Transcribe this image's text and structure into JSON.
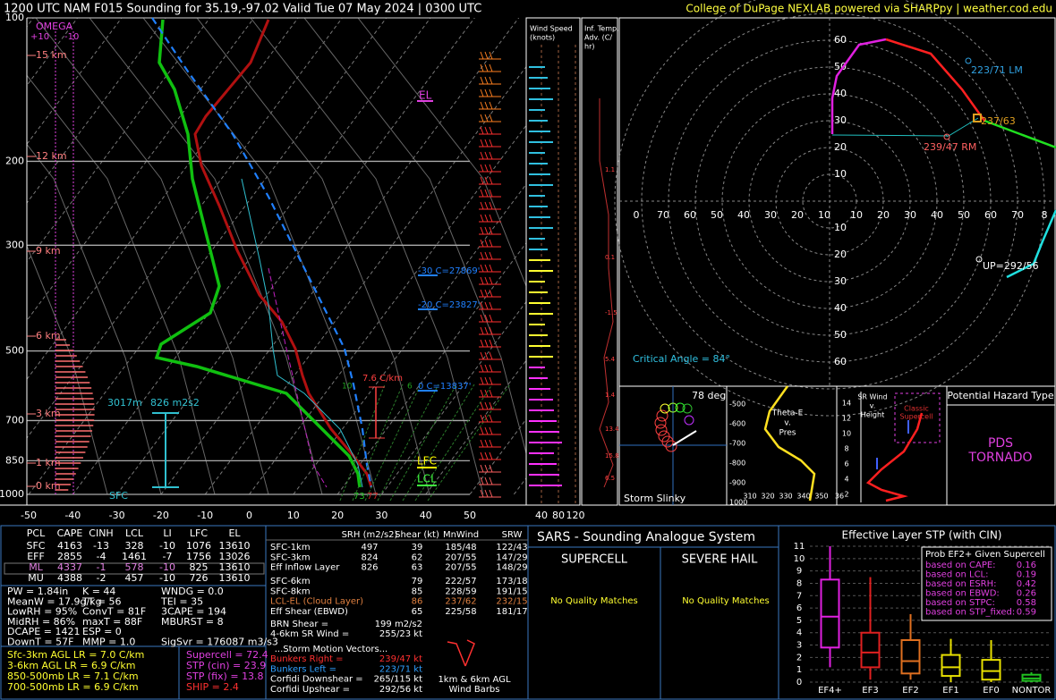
{
  "header": {
    "title": "1200 UTC NAM F015 Sounding for 35.19,-97.02 Valid  Tue 07 May 2024 | 0300 UTC",
    "credit": "College of DuPage NEXLAB powered via SHARPpy | weather.cod.edu"
  },
  "skewt": {
    "pressure_labels": [
      "100",
      "200",
      "300",
      "500",
      "700",
      "850",
      "1000"
    ],
    "temp_labels": [
      "-50",
      "-40",
      "-30",
      "-20",
      "-10",
      "0",
      "10",
      "20",
      "30",
      "40",
      "50"
    ],
    "heights": [
      "15 km",
      "12 km",
      "9 km",
      "6 km",
      "3 km",
      "1 km",
      "0 km"
    ],
    "omega": "OMEGA",
    "omega_scale": [
      "+10",
      "-10"
    ],
    "el": "EL",
    "lfc": "LFC",
    "lcl": "LCL",
    "levels": [
      "-30 C=27869'",
      "-20 C=23827'",
      "0 C=13837'"
    ],
    "lapse": "7.6 C/km",
    "inflow_depth": "3017m",
    "inflow_srh": "826 m2s2",
    "sfc": "SFC",
    "sfc_dew": "73",
    "sfc_temp": "77",
    "mixing_labels": [
      "10",
      "6"
    ]
  },
  "wind_panel": {
    "title": [
      "Wind Speed",
      "(knots)"
    ],
    "ticks": [
      "40",
      "80",
      "120"
    ]
  },
  "temp_adv": {
    "title": [
      "Inf. Temp.",
      "Adv. (C/",
      "hr)"
    ],
    "labels": [
      "1.1",
      "0.1",
      "-1.5",
      "5.4",
      "1.4",
      "13.4",
      "15.8",
      "6.5"
    ]
  },
  "hodograph": {
    "y_up": [
      "60",
      "50",
      "40",
      "30",
      "20",
      "10"
    ],
    "y_down": [
      "10",
      "20",
      "30",
      "40",
      "50",
      "60"
    ],
    "x_left": [
      "0",
      "70",
      "60",
      "50",
      "40",
      "30",
      "20",
      "10"
    ],
    "x_right": [
      "10",
      "20",
      "30",
      "40",
      "50",
      "60",
      "70",
      "8"
    ],
    "lm": "223/71 LM",
    "mean": "237/63",
    "rm": "239/47 RM",
    "up": "UP=292/56",
    "critical": "Critical Angle = 84°"
  },
  "slinky": {
    "angle": "78 deg",
    "title": "Storm Slinky"
  },
  "theta_e": {
    "title": [
      "Theta-E",
      "v.",
      "Pres"
    ],
    "y_labels": [
      "-500",
      "-600",
      "-700",
      "-800",
      "-900",
      "1000"
    ],
    "x_labels": [
      "310",
      "320",
      "330",
      "340",
      "350",
      "36"
    ]
  },
  "sr_wind": {
    "title": [
      "SR Wind",
      "v.",
      "Height"
    ],
    "y_labels": [
      "14",
      "12",
      "10",
      "8",
      "6",
      "4",
      "2"
    ],
    "box": [
      "Classic",
      "Supercell"
    ]
  },
  "hazard": {
    "title": "Potential Hazard Type",
    "type": [
      "PDS",
      "TORNADO"
    ]
  },
  "parcels": {
    "header": [
      "PCL",
      "CAPE",
      "CINH",
      "LCL",
      "LI",
      "LFC",
      "EL"
    ],
    "rows": [
      [
        "SFC",
        "4163",
        "-13",
        "328",
        "-10",
        "1076",
        "13610"
      ],
      [
        "EFF",
        "2855",
        "-4",
        "1461",
        "-7",
        "1756",
        "13026"
      ],
      [
        "ML",
        "4337",
        "-1",
        "578",
        "-10",
        "825",
        "13610"
      ],
      [
        "MU",
        "4388",
        "-2",
        "457",
        "-10",
        "726",
        "13610"
      ]
    ]
  },
  "indices": [
    [
      "PW = 1.84in",
      "K = 44",
      "WNDG = 0.0"
    ],
    [
      "MeanW = 17.9g/kg",
      "TT = 56",
      "TEI = 35"
    ],
    [
      "LowRH = 95%",
      "ConvT = 81F",
      "3CAPE = 194"
    ],
    [
      "MidRH = 86%",
      "maxT = 88F",
      "MBURST = 8"
    ],
    [
      "DCAPE = 1421",
      "ESP = 0"
    ],
    [
      "DownT = 57F",
      "MMP = 1.0",
      "SigSvr = 176087 m3/s3"
    ]
  ],
  "lapse_rates": [
    "Sfc-3km AGL LR = 7.0 C/km",
    "3-6km AGL LR = 6.9 C/km",
    "850-500mb LR = 7.1 C/km",
    "700-500mb LR = 6.9 C/km"
  ],
  "composites": [
    "Supercell = 72.4",
    "STP (cin) = 23.9",
    "STP (fix) = 13.8",
    "SHIP = 2.4"
  ],
  "kinematics": {
    "header": [
      "SRH (m2/s2)",
      "Shear (kt)",
      "MnWind",
      "SRW"
    ],
    "rows": [
      [
        "SFC-1km",
        "497",
        "39",
        "185/48",
        "122/43"
      ],
      [
        "SFC-3km",
        "824",
        "62",
        "207/55",
        "147/29"
      ],
      [
        "Eff Inflow Layer",
        "826",
        "63",
        "207/55",
        "148/29"
      ],
      [
        "SFC-6km",
        "",
        "79",
        "222/57",
        "173/18"
      ],
      [
        "SFC-8km",
        "",
        "85",
        "228/59",
        "191/15"
      ],
      [
        "LCL-EL (Cloud Layer)",
        "",
        "86",
        "237/62",
        "232/15"
      ],
      [
        "Eff Shear (EBWD)",
        "",
        "65",
        "225/58",
        "181/17"
      ]
    ],
    "brn": [
      "BRN Shear =",
      "199 m2/s2"
    ],
    "sr46": [
      "4-6km SR Wind =",
      "255/23 kt"
    ],
    "vectors_title": "...Storm Motion Vectors...",
    "vectors": [
      [
        "Bunkers Right =",
        "239/47 kt"
      ],
      [
        "Bunkers Left =",
        "223/71 kt"
      ],
      [
        "Corfidi Downshear =",
        "265/115 kt"
      ],
      [
        "Corfidi Upshear =",
        "292/56 kt"
      ]
    ],
    "barbs": [
      "1km & 6km AGL",
      "Wind Barbs"
    ]
  },
  "sars": {
    "title": "SARS - Sounding Analogue System",
    "supercell": "SUPERCELL",
    "hail": "SEVERE HAIL",
    "supercell_match": "No Quality Matches",
    "hail_match": "No Quality Matches"
  },
  "chart_data": {
    "type": "box",
    "title": "Effective Layer STP (with CIN)",
    "categories": [
      "EF4+",
      "EF3",
      "EF2",
      "EF1",
      "EF0",
      "NONTOR"
    ],
    "colors": [
      "#e020e0",
      "#e02020",
      "#e07020",
      "#e8e000",
      "#e8e000",
      "#20c020"
    ],
    "boxes": [
      {
        "low": 1.2,
        "q1": 2.8,
        "median": 5.3,
        "q3": 8.3,
        "high": 11
      },
      {
        "low": 0.2,
        "q1": 1.2,
        "median": 2.4,
        "q3": 4.0,
        "high": 8.5
      },
      {
        "low": 0.2,
        "q1": 0.7,
        "median": 1.7,
        "q3": 3.4,
        "high": 5.5
      },
      {
        "low": 0,
        "q1": 0.5,
        "median": 1.2,
        "q3": 2.2,
        "high": 3.5
      },
      {
        "low": 0,
        "q1": 0.2,
        "median": 0.9,
        "q3": 1.8,
        "high": 3.4
      },
      {
        "low": 0,
        "q1": 0.1,
        "median": 0.3,
        "q3": 0.6,
        "high": 0.8
      }
    ],
    "ylim": [
      0,
      11
    ],
    "yticks": [
      0,
      1,
      2,
      3,
      4,
      5,
      6,
      7,
      8,
      9,
      10,
      11
    ],
    "prob": {
      "title": "Prob EF2+ Given Supercell",
      "rows": [
        [
          "based on CAPE:",
          "0.16"
        ],
        [
          "based on LCL:",
          "0.19"
        ],
        [
          "based on ESRH:",
          "0.42"
        ],
        [
          "based on EBWD:",
          "0.26"
        ],
        [
          "based on STPC:",
          "0.58"
        ],
        [
          "based on STP_fixed:",
          "0.59"
        ]
      ]
    }
  }
}
